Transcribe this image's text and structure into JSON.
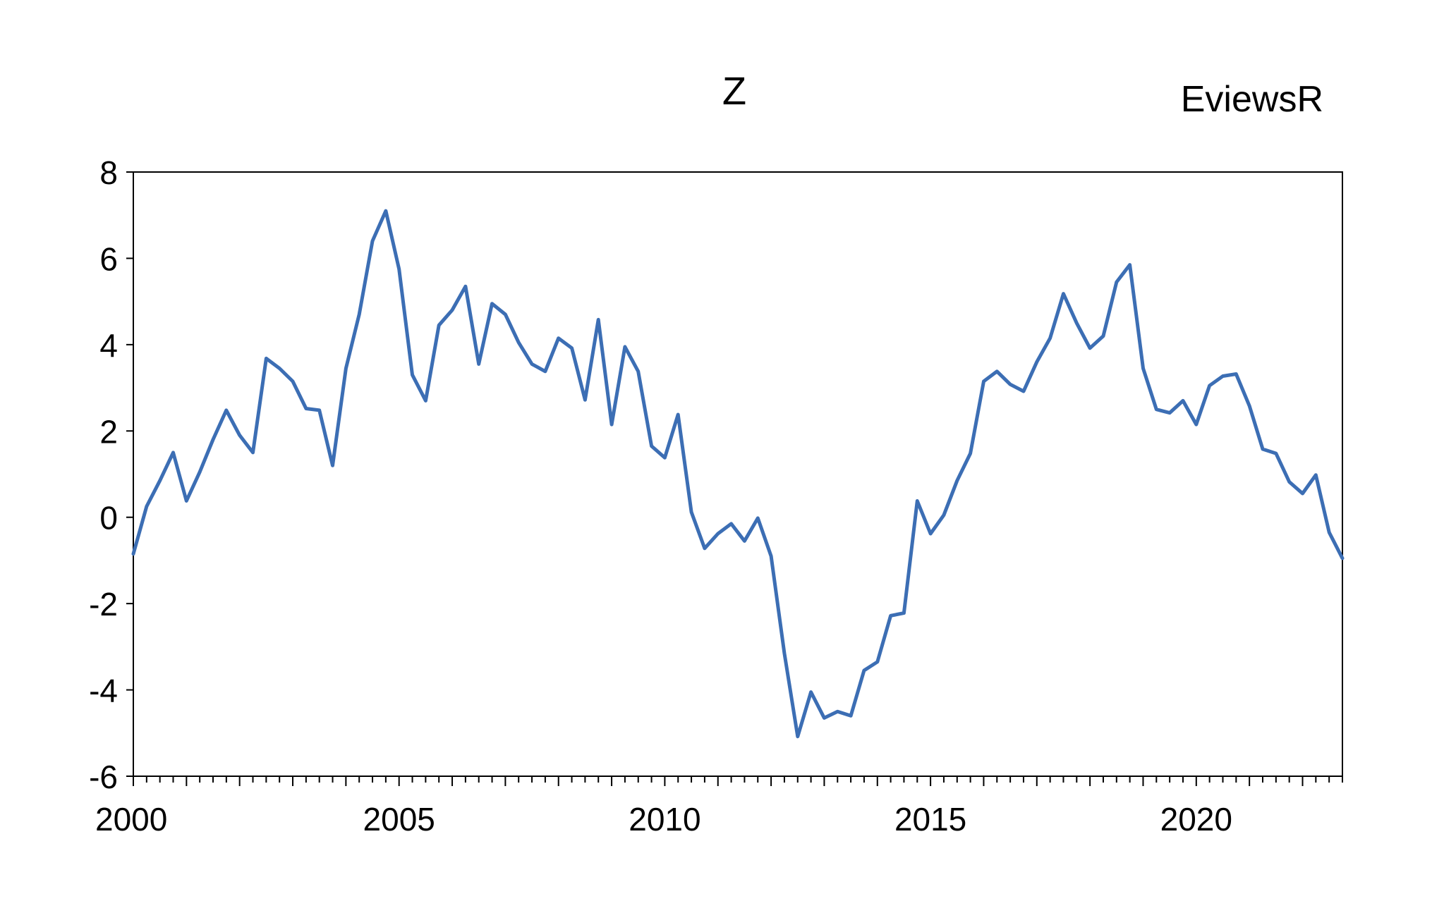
{
  "chart_data": {
    "type": "line",
    "title": "Z",
    "watermark": "EviewsR",
    "xlabel": "",
    "ylabel": "",
    "x_start": 2000.0,
    "x_step": 0.25,
    "xlim": [
      2000,
      2022.75
    ],
    "ylim": [
      -6,
      8
    ],
    "yticks": [
      "-6",
      "-4",
      "-2",
      "0",
      "2",
      "4",
      "6",
      "8"
    ],
    "xticks": [
      "2000",
      "2005",
      "2010",
      "2015",
      "2020"
    ],
    "grid": false,
    "line_color": "#3C6EB4",
    "series": [
      {
        "values": [
          -0.85,
          0.25,
          0.85,
          1.5,
          0.38,
          1.05,
          1.8,
          2.48,
          1.9,
          1.5,
          3.68,
          3.45,
          3.15,
          2.52,
          2.48,
          1.2,
          3.45,
          4.7,
          6.4,
          7.1,
          5.75,
          3.3,
          2.7,
          4.45,
          4.8,
          5.35,
          3.55,
          4.95,
          4.7,
          4.05,
          3.55,
          3.38,
          4.15,
          3.92,
          2.72,
          4.58,
          2.15,
          3.95,
          3.38,
          1.65,
          1.38,
          2.38,
          0.12,
          -0.72,
          -0.38,
          -0.15,
          -0.55,
          -0.02,
          -0.9,
          -3.15,
          -5.08,
          -4.05,
          -4.65,
          -4.5,
          -4.6,
          -3.55,
          -3.35,
          -2.28,
          -2.22,
          0.38,
          -0.38,
          0.05,
          0.85,
          1.48,
          3.15,
          3.38,
          3.08,
          2.92,
          3.6,
          4.15,
          5.18,
          4.5,
          3.92,
          4.2,
          5.45,
          5.85,
          3.45,
          2.5,
          2.42,
          2.7,
          2.15,
          3.05,
          3.27,
          3.32,
          2.58,
          1.58,
          1.48,
          0.82,
          0.55,
          0.98,
          -0.35,
          -0.95
        ]
      }
    ]
  }
}
